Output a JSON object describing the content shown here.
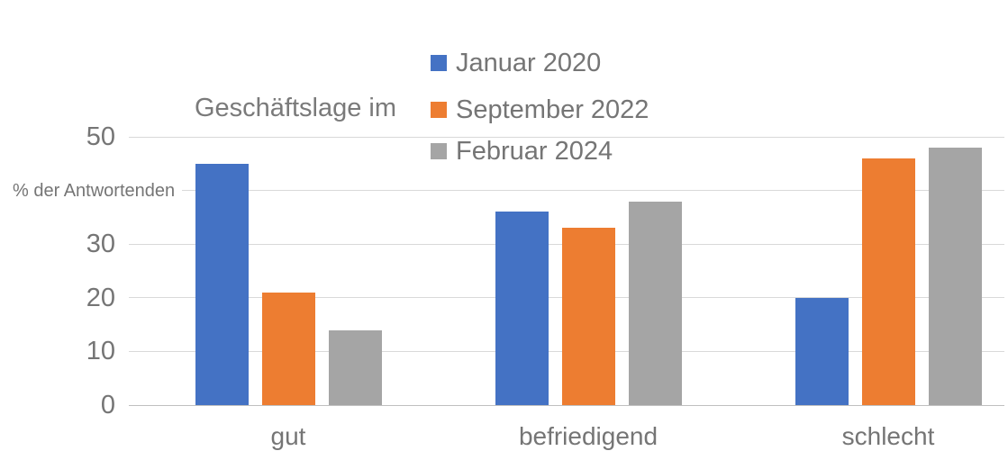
{
  "chart_data": {
    "type": "bar",
    "title": "Geschäftslage im",
    "ylabel": "% der Antwortenden",
    "xlabel": "",
    "categories": [
      "gut",
      "befriedigend",
      "schlecht"
    ],
    "series": [
      {
        "name": "Januar 2020",
        "color": "#4472C4",
        "values": [
          45,
          36,
          20
        ]
      },
      {
        "name": "September 2022",
        "color": "#ED7D31",
        "values": [
          21,
          33,
          46
        ]
      },
      {
        "name": "Februar 2024",
        "color": "#A5A5A5",
        "values": [
          14,
          38,
          48
        ]
      }
    ],
    "ylim": [
      0,
      50
    ],
    "yticks": [
      {
        "v": 0,
        "label": "0"
      },
      {
        "v": 10,
        "label": "10"
      },
      {
        "v": 20,
        "label": "20"
      },
      {
        "v": 30,
        "label": "30"
      },
      {
        "v": 40,
        "label": ""
      },
      {
        "v": 50,
        "label": "50"
      }
    ],
    "gridlines": [
      0,
      10,
      20,
      30,
      40,
      50
    ],
    "grid": true,
    "legend_position": "top-center-vertical",
    "colors": {
      "text": "#757575",
      "gridline": "#D9D9D9",
      "baseline": "#C0C0C0",
      "background": "#FFFFFF"
    }
  }
}
